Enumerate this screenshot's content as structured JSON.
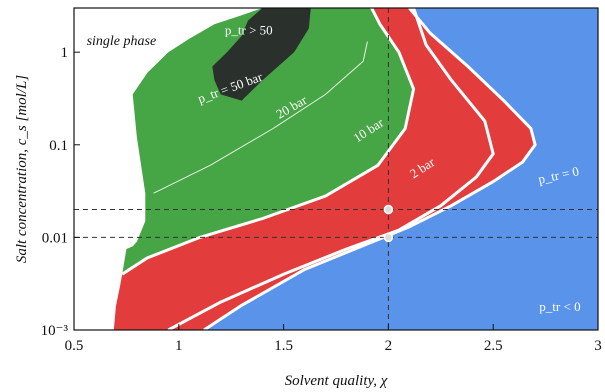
{
  "chart_data": {
    "type": "area",
    "title": "",
    "xlabel": "Solvent quality, χ",
    "ylabel": "Salt concentration, c_s [mol/L]",
    "yscale": "log",
    "xlim": [
      0.5,
      3
    ],
    "ylim": [
      0.001,
      3
    ],
    "x_ticks": [
      {
        "v": 0.5,
        "label": "0.5"
      },
      {
        "v": 1,
        "label": "1"
      },
      {
        "v": 1.5,
        "label": "1.5"
      },
      {
        "v": 2,
        "label": "2"
      },
      {
        "v": 2.5,
        "label": "2.5"
      },
      {
        "v": 3,
        "label": "3"
      }
    ],
    "y_ticks": [
      {
        "v": 0.001,
        "label": "10⁻³"
      },
      {
        "v": 0.01,
        "label": "0.01"
      },
      {
        "v": 0.1,
        "label": "0.1"
      },
      {
        "v": 1,
        "label": "1"
      }
    ],
    "colors": {
      "negative": "#5a93ea",
      "p_0_to_10": "#e23c3c",
      "p_10_to_50": "#46a544",
      "p_above_50": "#2a302c",
      "single_phase": "#ffffff",
      "boundary": "#ffffff",
      "guide": "#333333"
    },
    "boundaries": {
      "p_zero": {
        "points": [
          [
            1.12,
            0.001
          ],
          [
            1.3,
            0.00185
          ],
          [
            1.6,
            0.0045
          ],
          [
            1.9,
            0.0085
          ],
          [
            2.1,
            0.013
          ],
          [
            2.3,
            0.022
          ],
          [
            2.5,
            0.04
          ],
          [
            2.64,
            0.065
          ],
          [
            2.7,
            0.1
          ],
          [
            2.68,
            0.15
          ],
          [
            2.55,
            0.3
          ],
          [
            2.38,
            0.7
          ],
          [
            2.2,
            1.6
          ],
          [
            2.1,
            3
          ]
        ]
      },
      "p_2_bar": {
        "points": [
          [
            0.95,
            0.001
          ],
          [
            1.2,
            0.002
          ],
          [
            1.5,
            0.004
          ],
          [
            1.8,
            0.0075
          ],
          [
            2.05,
            0.012
          ],
          [
            2.25,
            0.022
          ],
          [
            2.42,
            0.045
          ],
          [
            2.5,
            0.08
          ],
          [
            2.46,
            0.18
          ],
          [
            2.3,
            0.5
          ],
          [
            2.18,
            1.2
          ],
          [
            2.12,
            3
          ]
        ]
      },
      "p_10_bar": {
        "points": [
          [
            0.73,
            0.004
          ],
          [
            0.85,
            0.006
          ],
          [
            1.1,
            0.01
          ],
          [
            1.4,
            0.016
          ],
          [
            1.7,
            0.028
          ],
          [
            1.95,
            0.06
          ],
          [
            2.08,
            0.15
          ],
          [
            2.12,
            0.4
          ],
          [
            2.05,
            1.0
          ],
          [
            1.96,
            2.0
          ],
          [
            1.92,
            3
          ]
        ]
      },
      "p_20_bar": {
        "points": [
          [
            0.88,
            0.03
          ],
          [
            1.15,
            0.06
          ],
          [
            1.45,
            0.15
          ],
          [
            1.7,
            0.35
          ],
          [
            1.88,
            0.8
          ],
          [
            1.9,
            1.3
          ]
        ]
      },
      "p_50_bar": {
        "points": [
          [
            0.8,
            0.12
          ],
          [
            1.0,
            0.16
          ],
          [
            1.2,
            0.28
          ],
          [
            1.4,
            0.5
          ],
          [
            1.55,
            1.0
          ],
          [
            1.62,
            1.8
          ],
          [
            1.63,
            3
          ]
        ]
      },
      "green_left_edge": {
        "points": [
          [
            0.78,
            0.35
          ],
          [
            0.8,
            0.12
          ],
          [
            0.82,
            0.06
          ],
          [
            0.84,
            0.03
          ],
          [
            0.84,
            0.015
          ],
          [
            0.8,
            0.009
          ],
          [
            0.78,
            0.008
          ],
          [
            0.75,
            0.0075
          ],
          [
            0.73,
            0.004
          ]
        ]
      },
      "red_left_edge": {
        "points": [
          [
            0.73,
            0.004
          ],
          [
            0.72,
            0.003
          ],
          [
            0.7,
            0.0018
          ],
          [
            0.69,
            0.001
          ]
        ]
      },
      "green_top": {
        "points": [
          [
            0.78,
            0.35
          ],
          [
            0.85,
            0.6
          ],
          [
            0.95,
            1.0
          ],
          [
            1.05,
            1.4
          ],
          [
            1.17,
            2.0
          ],
          [
            1.3,
            2.5
          ],
          [
            1.4,
            3
          ]
        ]
      },
      "dark_left_edge": {
        "points": [
          [
            1.4,
            3
          ],
          [
            1.33,
            2.2
          ],
          [
            1.3,
            1.5
          ],
          [
            1.23,
            1.0
          ],
          [
            1.16,
            0.7
          ],
          [
            1.17,
            0.5
          ],
          [
            1.2,
            0.35
          ],
          [
            1.3,
            0.3
          ],
          [
            1.4,
            0.5
          ]
        ]
      }
    },
    "guide_lines": {
      "vertical_x": 2,
      "horizontal_y": [
        0.02,
        0.01
      ]
    },
    "markers": [
      {
        "x": 2,
        "y": 0.02
      },
      {
        "x": 2,
        "y": 0.01
      }
    ],
    "annotations": [
      {
        "id": "single-phase",
        "text": "single phase",
        "x": 0.56,
        "y": 1.2,
        "color": "dark"
      },
      {
        "id": "p-above-50",
        "text": "p_tr > 50",
        "x": 1.22,
        "y": 1.55,
        "color": "white"
      },
      {
        "id": "p-50-bar",
        "text": "p_tr = 50 bar",
        "x": 1.1,
        "y": 0.28,
        "color": "white",
        "angle": -20
      },
      {
        "id": "p-20-bar",
        "text": "20 bar",
        "x": 1.48,
        "y": 0.19,
        "color": "white",
        "angle": -30
      },
      {
        "id": "p-10-bar",
        "text": "10 bar",
        "x": 1.85,
        "y": 0.105,
        "color": "white",
        "angle": -33
      },
      {
        "id": "p-2-bar",
        "text": "2 bar",
        "x": 2.12,
        "y": 0.043,
        "color": "white",
        "angle": -33
      },
      {
        "id": "p-zero",
        "text": "p_tr = 0",
        "x": 2.72,
        "y": 0.038,
        "color": "white",
        "angle": -12
      },
      {
        "id": "p-negative",
        "text": "p_tr < 0",
        "x": 2.72,
        "y": 0.0016,
        "color": "white"
      }
    ]
  }
}
